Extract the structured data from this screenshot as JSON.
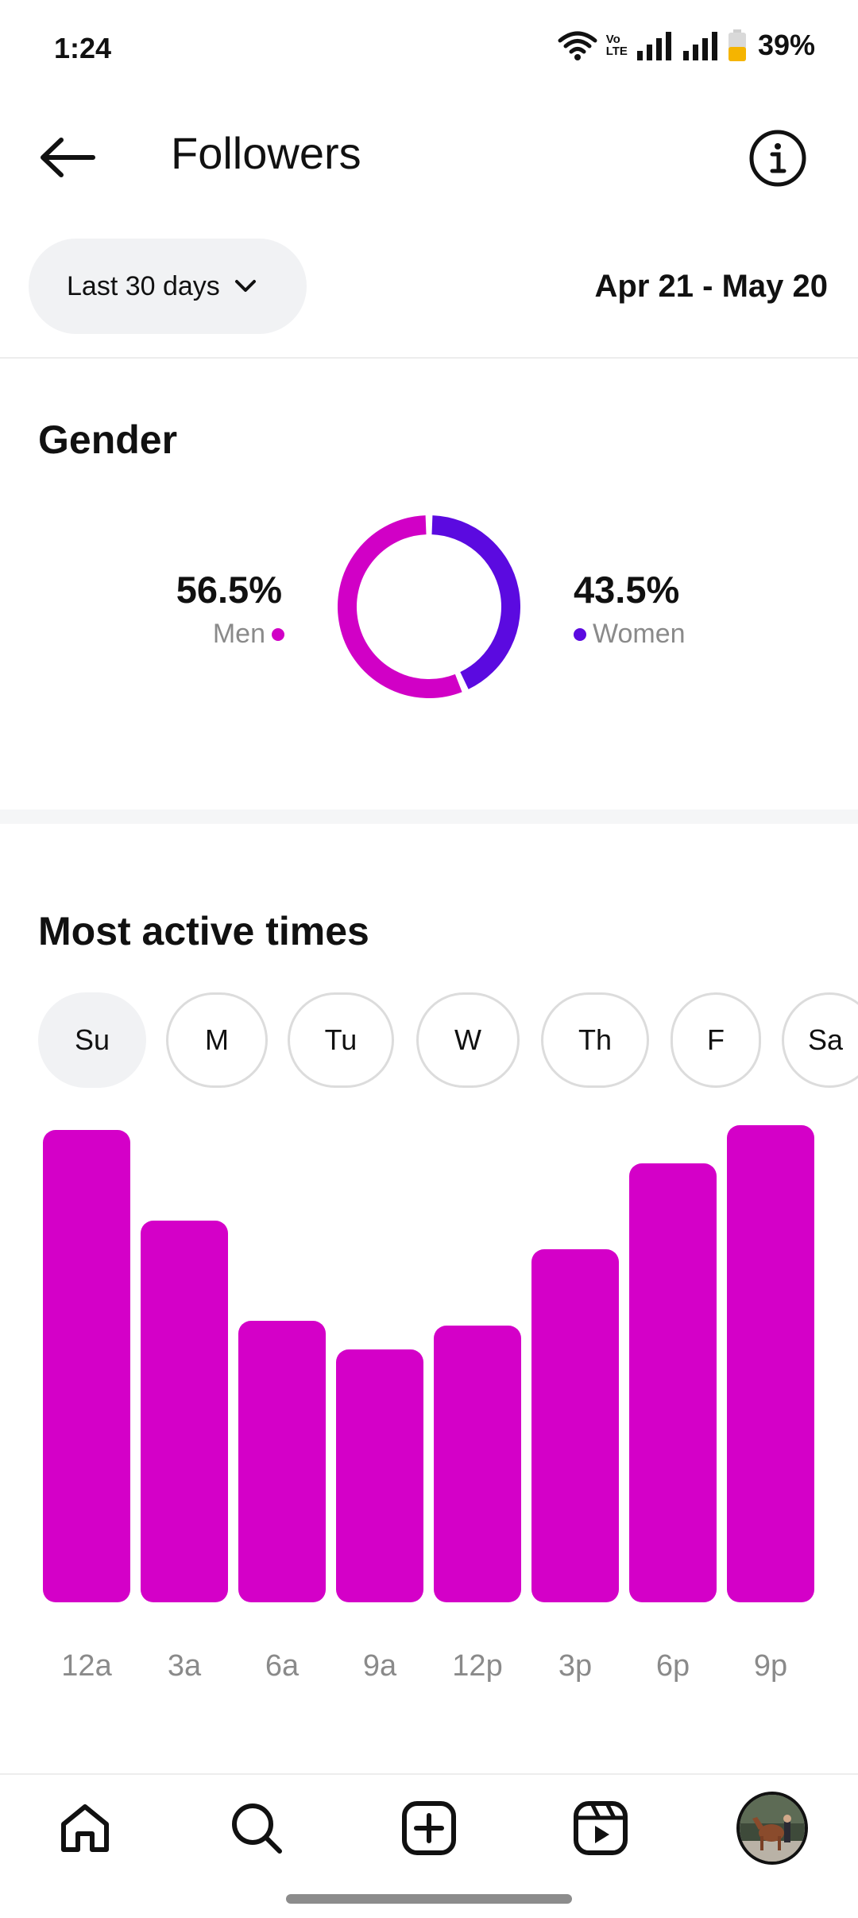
{
  "status_bar": {
    "time": "1:24",
    "volte_line1": "Vo",
    "volte_line2": "LTE",
    "battery": "39%"
  },
  "header": {
    "title": "Followers",
    "back_icon": "arrow-left-icon",
    "info_icon": "info-icon"
  },
  "filter": {
    "range_label": "Last 30 days",
    "date_range": "Apr 21 - May 20"
  },
  "gender": {
    "title": "Gender",
    "men_percent": "56.5%",
    "men_label": "Men",
    "women_percent": "43.5%",
    "women_label": "Women",
    "colors": {
      "men": "#d100c6",
      "women": "#5b0ae0"
    }
  },
  "active_times": {
    "title": "Most active times",
    "days": [
      "Su",
      "M",
      "Tu",
      "W",
      "Th",
      "F",
      "Sa"
    ],
    "selected_day": "Su"
  },
  "chart_data": {
    "type": "bar",
    "categories": [
      "12a",
      "3a",
      "6a",
      "9a",
      "12p",
      "3p",
      "6p",
      "9p"
    ],
    "values": [
      99,
      80,
      59,
      53,
      58,
      74,
      92,
      100
    ],
    "ylim": [
      0,
      100
    ],
    "color": "#d400c8",
    "grid": false
  },
  "nav": {
    "items": [
      "home-icon",
      "search-icon",
      "create-icon",
      "reels-icon",
      "profile-avatar"
    ]
  }
}
